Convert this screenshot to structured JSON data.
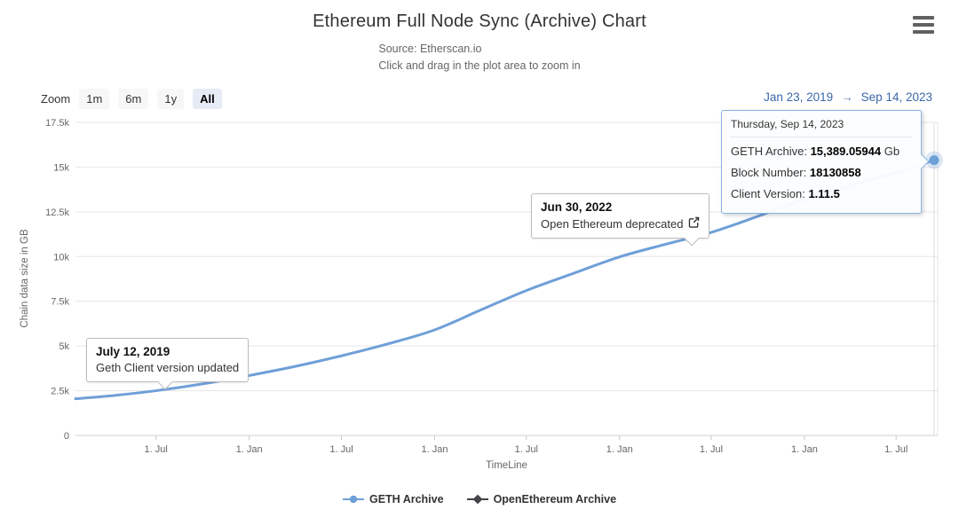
{
  "header": {
    "subtitle_source": "Source: Etherscan.io",
    "subtitle_hint": "Click and drag in the plot area to zoom in"
  },
  "controls": {
    "zoom_label": "Zoom",
    "zoom_buttons": [
      {
        "label": "1m",
        "selected": false
      },
      {
        "label": "6m",
        "selected": false
      },
      {
        "label": "1y",
        "selected": false
      },
      {
        "label": "All",
        "selected": true
      }
    ],
    "range_from": "Jan 23, 2019",
    "range_arrow": "→",
    "range_to": "Sep 14, 2023"
  },
  "tooltip": {
    "header": "Thursday, Sep 14, 2023",
    "border_color": "#86b3e3",
    "rows": [
      {
        "label": "GETH Archive: ",
        "value": "15,389.05944",
        "suffix": " Gb"
      },
      {
        "label": "Block Number: ",
        "value": "18130858",
        "suffix": ""
      },
      {
        "label": "Client Version: ",
        "value": "1.11.5",
        "suffix": ""
      }
    ]
  },
  "annotations": [
    {
      "title": "July 12, 2019",
      "text": "Geth Client version updated"
    },
    {
      "title": "Jun 30, 2022",
      "text": "Open Ethereum deprecated"
    }
  ],
  "chart_data": {
    "type": "line",
    "title": "Ethereum Full Node Sync (Archive) Chart",
    "xlabel": "TimeLine",
    "ylabel": "Chain data size in GB",
    "x_range": [
      "2019-01-23",
      "2023-09-14"
    ],
    "ylim": [
      0,
      17500
    ],
    "yticks": [
      0,
      2500,
      5000,
      7500,
      10000,
      12500,
      15000,
      17500
    ],
    "ytick_labels": [
      "0",
      "2.5k",
      "5k",
      "7.5k",
      "10k",
      "12.5k",
      "15k",
      "17.5k"
    ],
    "xticks": [
      "2019-07-01",
      "2020-01-01",
      "2020-07-01",
      "2021-01-01",
      "2021-07-01",
      "2022-01-01",
      "2022-07-01",
      "2023-01-01",
      "2023-07-01"
    ],
    "xtick_labels": [
      "1. Jul",
      "1. Jan",
      "1. Jul",
      "1. Jan",
      "1. Jul",
      "1. Jan",
      "1. Jul",
      "1. Jan",
      "1. Jul"
    ],
    "grid": "horizontal",
    "legend_position": "bottom",
    "series": [
      {
        "name": "GETH Archive",
        "color": "#6f9fd8",
        "marker": "circle",
        "points": [
          [
            "2019-01-23",
            2050
          ],
          [
            "2019-04-01",
            2210
          ],
          [
            "2019-07-01",
            2500
          ],
          [
            "2019-10-01",
            2880
          ],
          [
            "2020-01-01",
            3350
          ],
          [
            "2020-04-01",
            3860
          ],
          [
            "2020-07-01",
            4450
          ],
          [
            "2020-10-01",
            5120
          ],
          [
            "2021-01-01",
            5900
          ],
          [
            "2021-04-01",
            7000
          ],
          [
            "2021-07-01",
            8100
          ],
          [
            "2021-10-01",
            9050
          ],
          [
            "2022-01-01",
            9980
          ],
          [
            "2022-04-01",
            10680
          ],
          [
            "2022-07-01",
            11350
          ],
          [
            "2022-10-01",
            12250
          ],
          [
            "2023-01-01",
            13190
          ],
          [
            "2023-04-01",
            13950
          ],
          [
            "2023-07-01",
            14700
          ],
          [
            "2023-09-14",
            15389.05944
          ]
        ]
      },
      {
        "name": "OpenEthereum Archive",
        "color": "#434348",
        "marker": "diamond",
        "points": []
      }
    ],
    "end_point": {
      "date": "2023-09-14",
      "value": 15389.05944,
      "series": "GETH Archive"
    }
  }
}
